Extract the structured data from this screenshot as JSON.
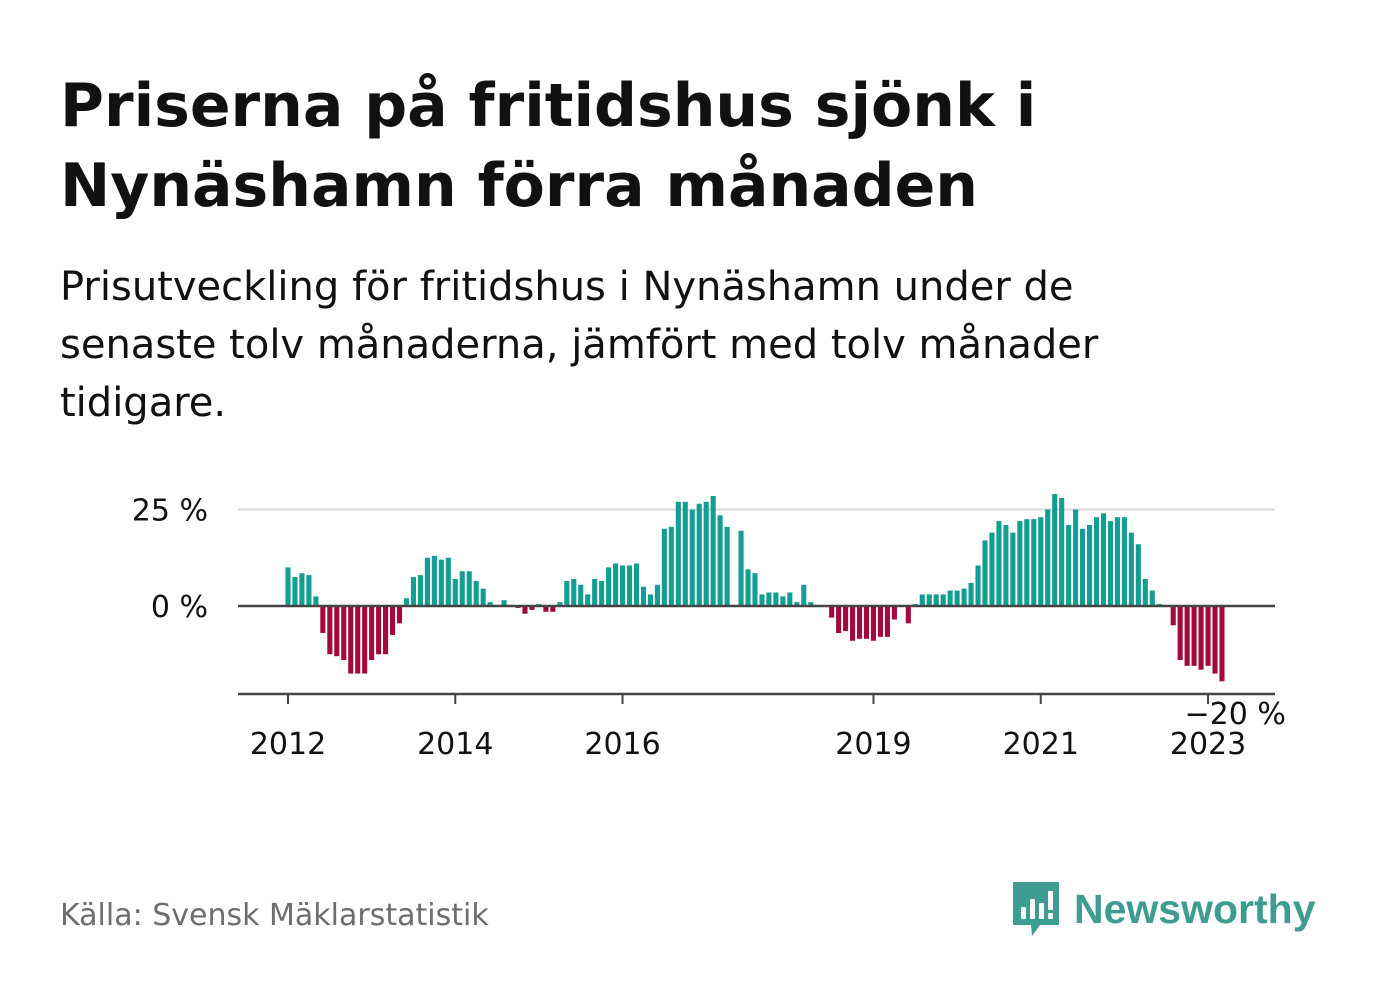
{
  "title": "Priserna på fritidshus sjönk i Nynäshamn förra månaden",
  "subtitle": "Prisutveckling för fritidshus i Nynäshamn under de senaste tolv månaderna, jämfört med tolv månader tidigare.",
  "source": "Källa: Svensk Mäklarstatistik",
  "brand": "Newsworthy",
  "colors": {
    "positive": "#139e93",
    "negative": "#a3083f",
    "axis": "#444444",
    "grid": "#d9d9d9",
    "brand": "#3e9c90",
    "text": "#111111",
    "muted": "#6d6d6d"
  },
  "chart_data": {
    "type": "bar",
    "unit": "%",
    "x_start": "2012-01",
    "frequency": "monthly",
    "ylim": [
      -23,
      30
    ],
    "yticks": [
      0,
      25
    ],
    "ytick_labels": [
      "0 %",
      "25 %"
    ],
    "grid": true,
    "xtick_labels": [
      {
        "label": "2012",
        "month_index": 0
      },
      {
        "label": "2014",
        "month_index": 24
      },
      {
        "label": "2016",
        "month_index": 48
      },
      {
        "label": "2019",
        "month_index": 84
      },
      {
        "label": "2021",
        "month_index": 108
      },
      {
        "label": "2023",
        "month_index": 132
      }
    ],
    "annotation": {
      "text": "−20 %",
      "month_index": 136
    },
    "values": [
      10,
      7.5,
      8.5,
      8,
      2.5,
      -7,
      -12.5,
      -13,
      -14,
      -17.5,
      -17.5,
      -17.5,
      -14,
      -12.5,
      -12.5,
      -7.5,
      -4.5,
      2,
      7.5,
      8,
      12.5,
      13,
      12,
      12.5,
      7,
      9,
      9,
      6.5,
      4.5,
      1,
      0,
      1.5,
      0,
      -0.5,
      -2,
      -1,
      0.5,
      -1.5,
      -1.5,
      1,
      6.5,
      7,
      5.5,
      3,
      7,
      6.5,
      10,
      11,
      10.5,
      10.5,
      11,
      5,
      3,
      5.5,
      20,
      20.5,
      27,
      27,
      25,
      26.5,
      27,
      28.5,
      23.5,
      20.5,
      0,
      19.5,
      9.5,
      8.5,
      3,
      3.5,
      3.5,
      2.5,
      3.5,
      1,
      5.5,
      1,
      0,
      0,
      -3,
      -7,
      -6.5,
      -9,
      -8.5,
      -8.5,
      -9,
      -8,
      -8,
      -3.5,
      0,
      -4.5,
      0.5,
      3,
      3,
      3,
      3,
      4,
      4,
      4.5,
      6,
      10.5,
      17,
      19,
      22,
      21,
      19,
      22,
      22.5,
      22.5,
      23,
      25,
      29,
      28,
      21,
      25,
      20,
      21,
      23,
      24,
      22,
      23,
      23,
      19,
      16,
      7,
      4,
      0.5,
      0,
      -5,
      -14,
      -15.5,
      -15.5,
      -16.5,
      -15.5,
      -17.5,
      -19.5
    ]
  }
}
